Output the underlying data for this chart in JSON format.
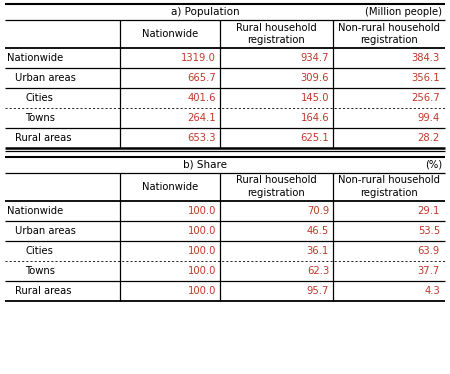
{
  "title_a": "a) Population",
  "title_b": "b) Share",
  "unit_a": "(Million people)",
  "unit_b": "(%)",
  "col_headers": [
    "Nationwide",
    "Rural household\nregistration",
    "Non-rural household\nregistration"
  ],
  "section_a": {
    "rows": [
      {
        "label": "Nationwide",
        "indent": 0,
        "values": [
          "1319.0",
          "934.7",
          "384.3"
        ],
        "dotted_below": false
      },
      {
        "label": "Urban areas",
        "indent": 1,
        "values": [
          "665.7",
          "309.6",
          "356.1"
        ],
        "dotted_below": false
      },
      {
        "label": "Cities",
        "indent": 2,
        "values": [
          "401.6",
          "145.0",
          "256.7"
        ],
        "dotted_below": true
      },
      {
        "label": "Towns",
        "indent": 2,
        "values": [
          "264.1",
          "164.6",
          "99.4"
        ],
        "dotted_below": false
      },
      {
        "label": "Rural areas",
        "indent": 1,
        "values": [
          "653.3",
          "625.1",
          "28.2"
        ],
        "dotted_below": false
      }
    ]
  },
  "section_b": {
    "rows": [
      {
        "label": "Nationwide",
        "indent": 0,
        "values": [
          "100.0",
          "70.9",
          "29.1"
        ],
        "dotted_below": false
      },
      {
        "label": "Urban areas",
        "indent": 1,
        "values": [
          "100.0",
          "46.5",
          "53.5"
        ],
        "dotted_below": false
      },
      {
        "label": "Cities",
        "indent": 2,
        "values": [
          "100.0",
          "36.1",
          "63.9"
        ],
        "dotted_below": true
      },
      {
        "label": "Towns",
        "indent": 2,
        "values": [
          "100.0",
          "62.3",
          "37.7"
        ],
        "dotted_below": false
      },
      {
        "label": "Rural areas",
        "indent": 1,
        "values": [
          "100.0",
          "95.7",
          "4.3"
        ],
        "dotted_below": false
      }
    ]
  },
  "text_color": "#c0392b",
  "label_color": "#000000",
  "bg_color": "#ffffff",
  "font_size": 7.2,
  "header_font_size": 7.2,
  "indent_sizes": [
    0,
    8,
    18
  ]
}
